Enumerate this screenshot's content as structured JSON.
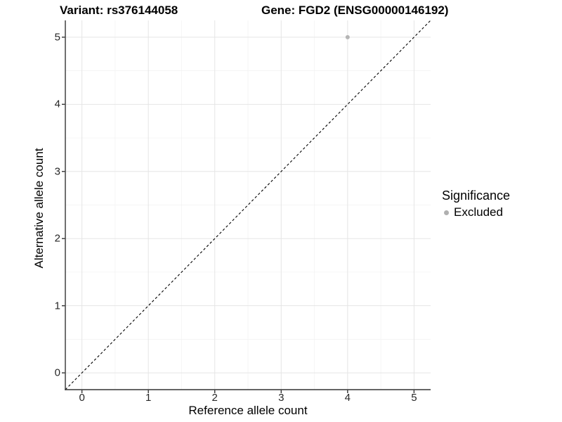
{
  "chart_data": {
    "type": "scatter",
    "title_left": "Variant: rs376144058",
    "title_right": "Gene: FGD2 (ENSG00000146192)",
    "xlabel": "Reference allele count",
    "ylabel": "Alternative allele count",
    "xlim": [
      -0.25,
      5.25
    ],
    "ylim": [
      -0.25,
      5.25
    ],
    "x_ticks": [
      0,
      1,
      2,
      3,
      4,
      5
    ],
    "y_ticks": [
      0,
      1,
      2,
      3,
      4,
      5
    ],
    "grid": "major and minor gridlines on white background",
    "legend_position": "right middle",
    "series": [
      {
        "name": "Excluded",
        "color": "#b5b5b5",
        "points": [
          {
            "x": 4,
            "y": 5
          }
        ]
      }
    ],
    "reference_line": {
      "type": "identity y=x",
      "style": "dashed",
      "color": "#000000"
    },
    "legend": {
      "title": "Significance",
      "items": [
        {
          "label": "Excluded",
          "color": "#b0b0b0"
        }
      ]
    }
  },
  "colors": {
    "background": "#ffffff",
    "grid_major": "#e5e5e5",
    "grid_minor": "#f2f2f2",
    "axis_line": "#333333",
    "tick_mark": "#333333",
    "tick_text": "#262626",
    "title_text": "#000000"
  }
}
